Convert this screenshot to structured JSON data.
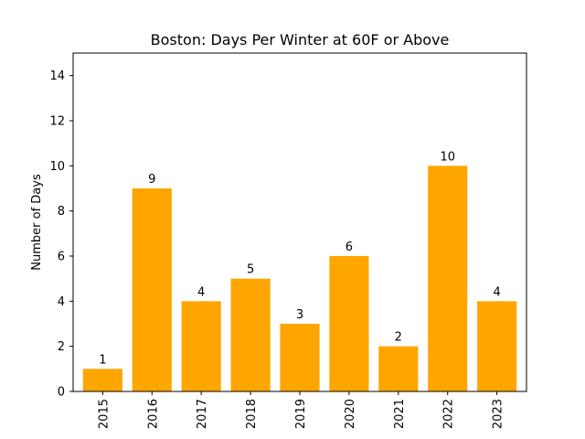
{
  "chart_data": {
    "type": "bar",
    "title": "Boston: Days Per Winter at 60F or Above",
    "xlabel": "",
    "ylabel": "Number of Days",
    "categories": [
      "2015",
      "2016",
      "2017",
      "2018",
      "2019",
      "2020",
      "2021",
      "2022",
      "2023"
    ],
    "values": [
      1,
      9,
      4,
      5,
      3,
      6,
      2,
      10,
      4
    ],
    "ylim": [
      0,
      15
    ],
    "yticks": [
      0,
      2,
      4,
      6,
      8,
      10,
      12,
      14
    ],
    "bar_color": "#FFA500",
    "grid": false,
    "data_labels": true
  }
}
